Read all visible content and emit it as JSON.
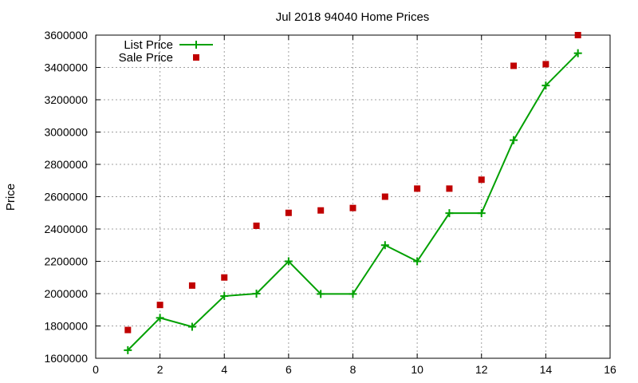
{
  "chart_data": {
    "type": "line",
    "title": "Jul 2018 94040 Home Prices",
    "xlabel": "",
    "ylabel": "Price",
    "xlim": [
      0,
      16
    ],
    "ylim": [
      1600000,
      3600000
    ],
    "xticks": [
      0,
      2,
      4,
      6,
      8,
      10,
      12,
      14,
      16
    ],
    "yticks": [
      1600000,
      1800000,
      2000000,
      2200000,
      2400000,
      2600000,
      2800000,
      3000000,
      3200000,
      3400000,
      3600000
    ],
    "xtick_labels": [
      "0",
      "2",
      "4",
      "6",
      "8",
      "10",
      "12",
      "14",
      "16"
    ],
    "ytick_labels": [
      "1600000",
      "1800000",
      "2000000",
      "2200000",
      "2400000",
      "2600000",
      "2800000",
      "3000000",
      "3200000",
      "3400000",
      "3600000"
    ],
    "grid": true,
    "legend_position": "top-left",
    "series": [
      {
        "name": "List Price",
        "style": "line-plus",
        "color": "#00a000",
        "x": [
          1,
          2,
          3,
          4,
          5,
          6,
          7,
          8,
          9,
          10,
          11,
          12,
          13,
          14,
          15
        ],
        "values": [
          1650000,
          1850000,
          1795000,
          1985000,
          2000000,
          2200000,
          1998000,
          1998000,
          2300000,
          2200000,
          2498000,
          2498000,
          2950000,
          3288000,
          3488000
        ]
      },
      {
        "name": "Sale Price",
        "style": "square",
        "color": "#c00000",
        "x": [
          1,
          2,
          3,
          4,
          5,
          6,
          7,
          8,
          9,
          10,
          11,
          12,
          13,
          14,
          15
        ],
        "values": [
          1775000,
          1930000,
          2050000,
          2100000,
          2420000,
          2500000,
          2515000,
          2530000,
          2600000,
          2650000,
          2650000,
          2705000,
          3410000,
          3420000,
          3600000
        ]
      }
    ]
  }
}
